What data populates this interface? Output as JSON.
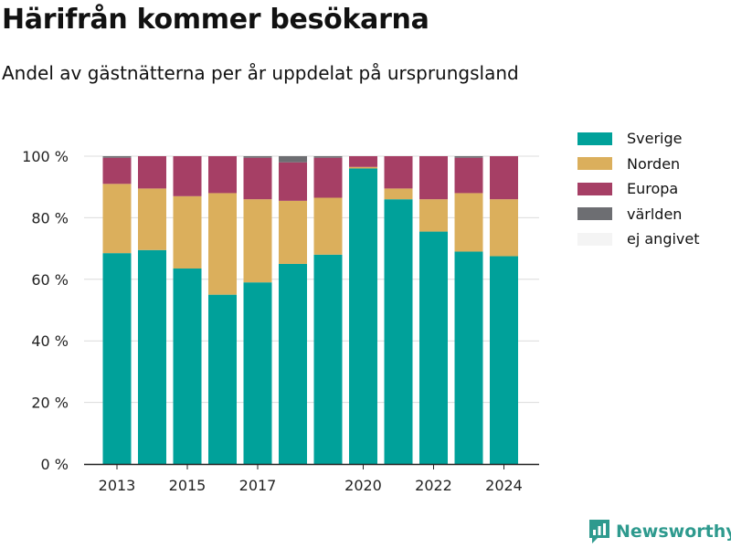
{
  "title": "Härifrån kommer besökarna",
  "subtitle": "Andel av gästnätterna per år uppdelat på ursprungsland",
  "brand": {
    "name": "Newsworthy",
    "color": "#2e9a8e",
    "icon": "bar-chart-logo-icon"
  },
  "chart_data": {
    "type": "bar",
    "stacked": true,
    "title": "Härifrån kommer besökarna",
    "subtitle": "Andel av gästnätterna per år uppdelat på ursprungsland",
    "xlabel": "",
    "ylabel": "",
    "categories": [
      2013,
      2014,
      2015,
      2016,
      2017,
      2018,
      2019,
      2020,
      2021,
      2022,
      2023,
      2024
    ],
    "x_tick_labels": [
      "2013",
      "2015",
      "2017",
      "2020",
      "2022",
      "2024"
    ],
    "x_tick_values": [
      2013,
      2015,
      2017,
      2020,
      2022,
      2024
    ],
    "y_tick_values": [
      0,
      20,
      40,
      60,
      80,
      100
    ],
    "y_tick_labels": [
      "0 %",
      "20 %",
      "40 %",
      "60 %",
      "80 %",
      "100 %"
    ],
    "ylim": [
      0,
      100
    ],
    "grid": true,
    "legend_position": "right",
    "series": [
      {
        "name": "Sverige",
        "color": "#00a19a",
        "values": [
          68.5,
          69.5,
          63.5,
          55,
          59,
          65,
          68,
          96,
          86,
          75.5,
          69,
          67.5
        ]
      },
      {
        "name": "Norden",
        "color": "#dbaf5c",
        "values": [
          22.5,
          20,
          23.5,
          33,
          27,
          20.5,
          18.5,
          0.5,
          3.5,
          10.5,
          19,
          18.5
        ]
      },
      {
        "name": "Europa",
        "color": "#a63f65",
        "values": [
          8.5,
          10.5,
          13,
          12,
          13.5,
          12.5,
          13,
          3.5,
          10.5,
          14,
          11.5,
          14
        ]
      },
      {
        "name": "världen",
        "color": "#6d6e72",
        "values": [
          0.5,
          0,
          0,
          0,
          0.5,
          2,
          0.5,
          0,
          0,
          0,
          0.5,
          0
        ]
      },
      {
        "name": "ej angivet",
        "color": "#f4f4f4",
        "values": [
          0,
          0,
          0,
          0,
          0,
          0,
          0,
          0,
          0,
          0,
          0,
          0
        ]
      }
    ]
  }
}
